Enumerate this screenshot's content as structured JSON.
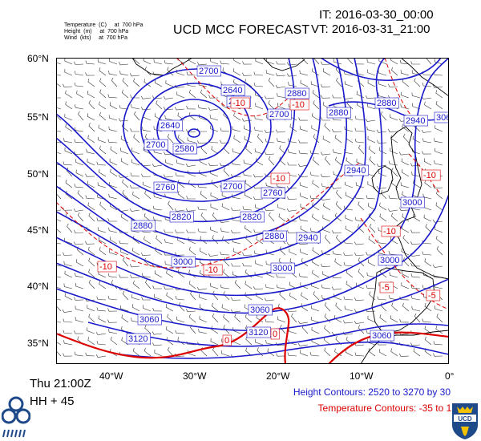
{
  "header": {
    "legend_lines": [
      "Temperature  (C)     at  700 hPa",
      "Height  (m)     at  700 hPa",
      "Wind  (kts)     at  700 hPa"
    ],
    "title": "UCD MCC FORECAST",
    "it": "IT: 2016-03-30_00:00",
    "vt": "VT: 2016-03-31_21:00"
  },
  "axes": {
    "lat_labels": [
      "60°N",
      "55°N",
      "50°N",
      "45°N",
      "40°N",
      "35°N"
    ],
    "lon_labels": [
      "40°W",
      "30°W",
      "20°W",
      "10°W",
      "0°"
    ]
  },
  "height_labels": [
    "2700",
    "2640",
    "2760",
    "2640",
    "2580",
    "2700",
    "2700",
    "2880",
    "2880",
    "2880",
    "2940",
    "2700",
    "2760",
    "2760",
    "2820",
    "2820",
    "2880",
    "2880",
    "2940",
    "3000",
    "3000",
    "2940",
    "3000",
    "3000",
    "3060",
    "3060",
    "3120",
    "3120",
    "3060",
    "3060",
    "2880"
  ],
  "temp_labels": [
    "-10",
    "-10",
    "-10",
    "-10",
    "-10",
    "-10",
    "-5",
    "-10",
    "0",
    "0",
    "-5"
  ],
  "footer": {
    "time": "Thu 21:00Z",
    "hh": "HH + 45",
    "height_contours": "Height Contours: 2520 to 3270 by 30",
    "temp_contours": "Temperature Contours: -35 to 15 by 5"
  },
  "colors": {
    "height": "#1a1acc",
    "temperature": "#dd0000",
    "coast": "#000000"
  },
  "logos": {
    "left": "mcc-logo",
    "right": "ucd-crest"
  }
}
